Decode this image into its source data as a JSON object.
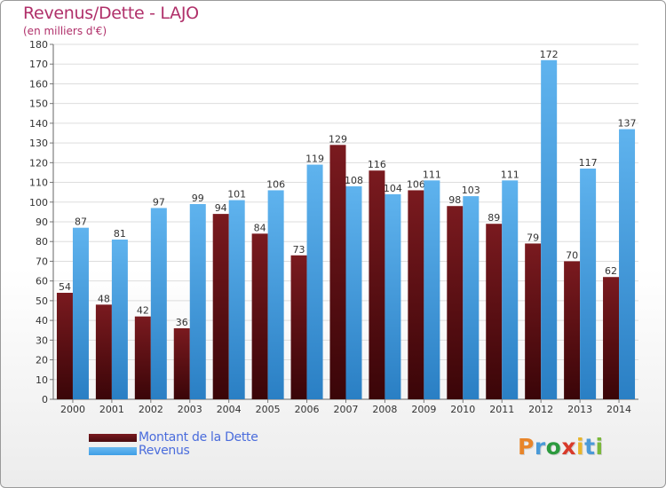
{
  "title": "Revenus/Dette - LAJO",
  "subtitle": "(en milliers d'€)",
  "colors": {
    "dette": "#7a1a1f",
    "revenus": "#3f9fe6",
    "title": "#b0306a",
    "legend_text": "#4a6cdc"
  },
  "legend": {
    "dette_label": "Montant de la Dette",
    "revenus_label": "Revenus"
  },
  "logo": {
    "letters": [
      "P",
      "r",
      "o",
      "x",
      "i",
      "t",
      "i"
    ],
    "colors": [
      "#e8852a",
      "#4a9ad8",
      "#2c9a3e",
      "#d83a2a",
      "#e8b52a",
      "#4a9ad8",
      "#7ab83a"
    ]
  },
  "chart_data": {
    "type": "bar",
    "title": "Revenus/Dette - LAJO",
    "subtitle": "(en milliers d'€)",
    "categories": [
      "2000",
      "2001",
      "2002",
      "2003",
      "2004",
      "2005",
      "2006",
      "2007",
      "2008",
      "2009",
      "2010",
      "2011",
      "2012",
      "2013",
      "2014"
    ],
    "series": [
      {
        "name": "Montant de la Dette",
        "values": [
          54,
          48,
          42,
          36,
          94,
          84,
          73,
          129,
          116,
          106,
          98,
          89,
          79,
          70,
          62
        ]
      },
      {
        "name": "Revenus",
        "values": [
          87,
          81,
          97,
          99,
          101,
          106,
          119,
          108,
          104,
          111,
          103,
          111,
          172,
          117,
          137
        ]
      }
    ],
    "ylim": [
      0,
      180
    ],
    "ytick_step": 10,
    "grid": true,
    "legend_position": "bottom-left"
  }
}
